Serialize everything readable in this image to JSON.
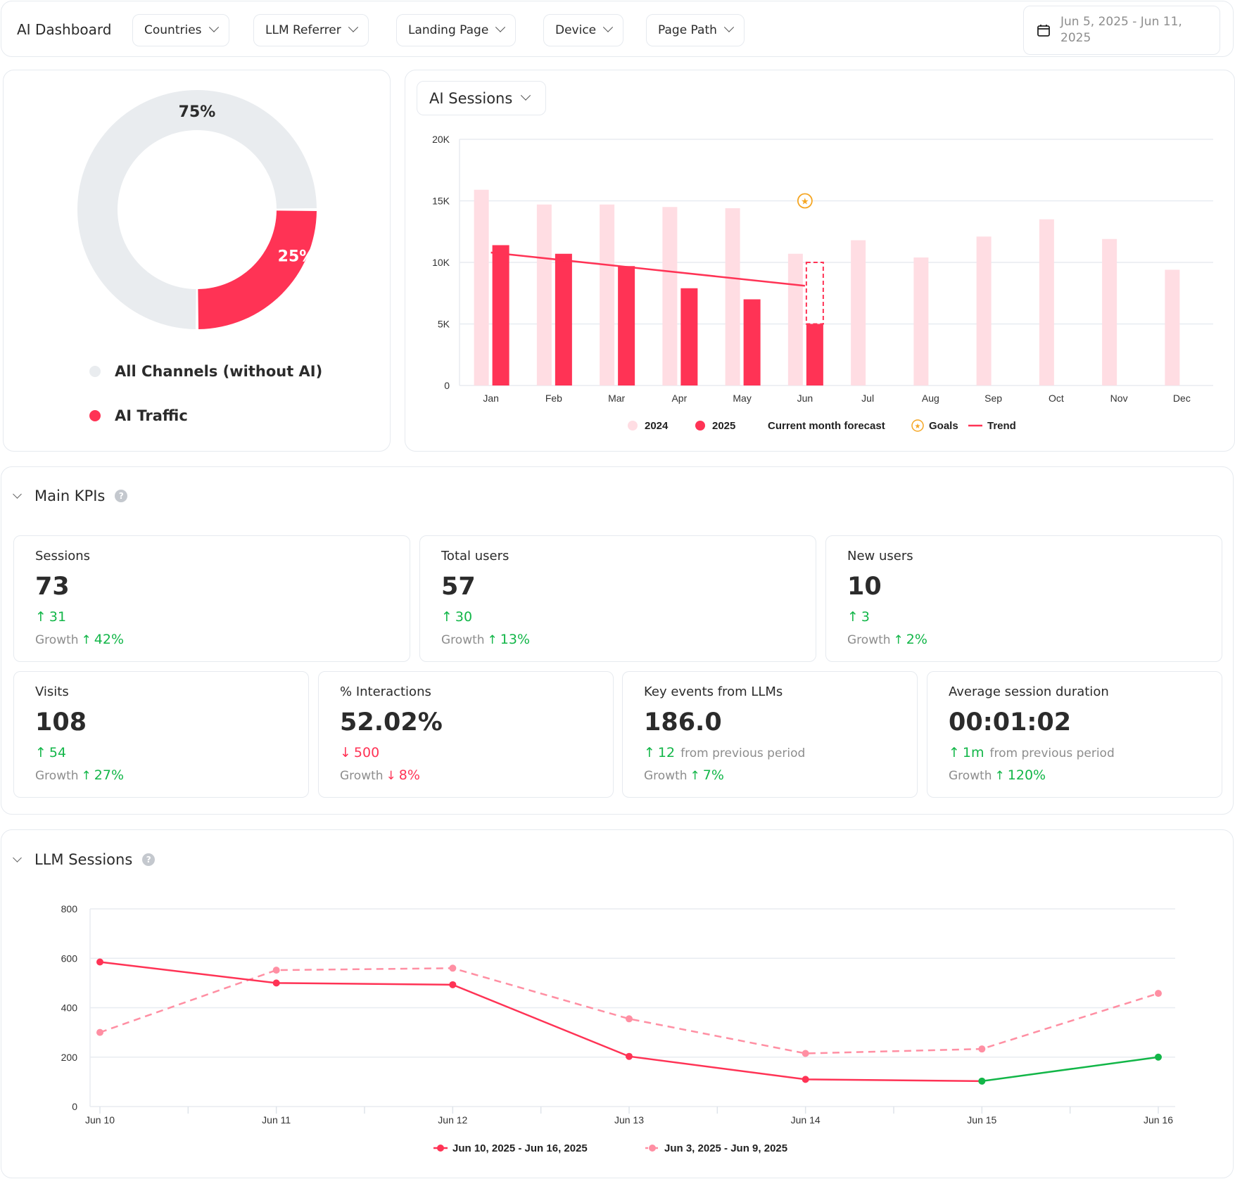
{
  "header": {
    "title": "AI Dashboard",
    "filters": [
      {
        "label": "Countries"
      },
      {
        "label": "LLM Referrer"
      },
      {
        "label": "Landing Page"
      },
      {
        "label": "Device"
      },
      {
        "label": "Page Path"
      }
    ],
    "date_range": "Jun 5, 2025 - Jun 11, 2025"
  },
  "colors": {
    "accent": "#ff3355",
    "accent_light": "#ffdde3",
    "neutral_slice": "#e9ecef",
    "previous_line": "#ff8fa3",
    "positive": "#12b648",
    "goal": "#f5a623"
  },
  "traffic_share": {
    "slices": [
      {
        "label": "All Channels (without AI)",
        "value": 75,
        "display": "75%",
        "color": "#e9ecef"
      },
      {
        "label": "AI Traffic",
        "value": 25,
        "display": "25%",
        "color": "#ff3355"
      }
    ]
  },
  "sessions_chart": {
    "metric_selector": "AI Sessions",
    "legend": {
      "y2024": "2024",
      "y2025": "2025",
      "forecast": "Current month forecast",
      "goals": "Goals",
      "trend": "Trend"
    }
  },
  "kpis": {
    "section_title": "Main KPIs",
    "help": "?",
    "growth_label": "Growth",
    "cards": [
      {
        "label": "Sessions",
        "value": "73",
        "delta": "31",
        "delta_dir": "up",
        "delta_suffix": "",
        "growth": "42%",
        "growth_dir": "up"
      },
      {
        "label": "Total users",
        "value": "57",
        "delta": "30",
        "delta_dir": "up",
        "delta_suffix": "",
        "growth": "13%",
        "growth_dir": "up"
      },
      {
        "label": "New users",
        "value": "10",
        "delta": "3",
        "delta_dir": "up",
        "delta_suffix": "",
        "growth": "2%",
        "growth_dir": "up"
      },
      {
        "label": "Visits",
        "value": "108",
        "delta": "54",
        "delta_dir": "up",
        "delta_suffix": "",
        "growth": "27%",
        "growth_dir": "up"
      },
      {
        "label": "% Interactions",
        "value": "52.02%",
        "delta": "500",
        "delta_dir": "down",
        "delta_suffix": "",
        "growth": "8%",
        "growth_dir": "down"
      },
      {
        "label": "Key events from LLMs",
        "value": "186.0",
        "delta": "12",
        "delta_dir": "up",
        "delta_suffix": "from previous period",
        "growth": "7%",
        "growth_dir": "up"
      },
      {
        "label": "Average session duration",
        "value": "00:01:02",
        "delta": "1m",
        "delta_dir": "up",
        "delta_suffix": "from previous period",
        "growth": "120%",
        "growth_dir": "up"
      }
    ]
  },
  "llm_sessions": {
    "section_title": "LLM Sessions",
    "help": "?"
  },
  "chart_data": [
    {
      "type": "pie",
      "title": "",
      "categories": [
        "All Channels (without AI)",
        "AI Traffic"
      ],
      "values": [
        75,
        25
      ],
      "legend": "bottom"
    },
    {
      "type": "bar",
      "title": "AI Sessions",
      "categories": [
        "Jan",
        "Feb",
        "Mar",
        "Apr",
        "May",
        "Jun",
        "Jul",
        "Aug",
        "Sep",
        "Oct",
        "Nov",
        "Dec"
      ],
      "series": [
        {
          "name": "2024",
          "values": [
            15900,
            14700,
            14700,
            14500,
            14400,
            10700,
            11800,
            10400,
            12100,
            13500,
            11900,
            9400
          ]
        },
        {
          "name": "2025",
          "values": [
            11400,
            10700,
            9700,
            7900,
            7000,
            5000,
            null,
            null,
            null,
            null,
            null,
            null
          ]
        }
      ],
      "forecast": {
        "month": "Jun",
        "value": 10000
      },
      "goals": [
        {
          "month": "Jun",
          "value": 15000
        }
      ],
      "trend": {
        "from": {
          "month": "Jan",
          "value": 10800
        },
        "to": {
          "month": "Jun",
          "value": 8100
        }
      },
      "yticks": [
        "0",
        "5K",
        "10K",
        "15K",
        "20K"
      ],
      "ylim": [
        0,
        20000
      ],
      "grid": true,
      "legend": "bottom",
      "xlabel": "",
      "ylabel": ""
    },
    {
      "type": "line",
      "title": "LLM Sessions",
      "x": [
        "Jun 10",
        "Jun 11",
        "Jun 12",
        "Jun 13",
        "Jun 14",
        "Jun 15",
        "Jun 16"
      ],
      "series": [
        {
          "name": "Jun 10, 2025 - Jun 16, 2025",
          "values": [
            585,
            500,
            493,
            203,
            110,
            103,
            200
          ],
          "style": "solid",
          "note": "last segment (Jun 15 to Jun 16) shown in green"
        },
        {
          "name": "Jun 3, 2025 - Jun 9, 2025",
          "values": [
            300,
            552,
            560,
            355,
            215,
            233,
            458
          ],
          "style": "dashed"
        }
      ],
      "yticks": [
        "0",
        "200",
        "400",
        "600",
        "800"
      ],
      "ylim": [
        0,
        800
      ],
      "grid": true,
      "legend": "bottom",
      "xlabel": "",
      "ylabel": ""
    }
  ]
}
